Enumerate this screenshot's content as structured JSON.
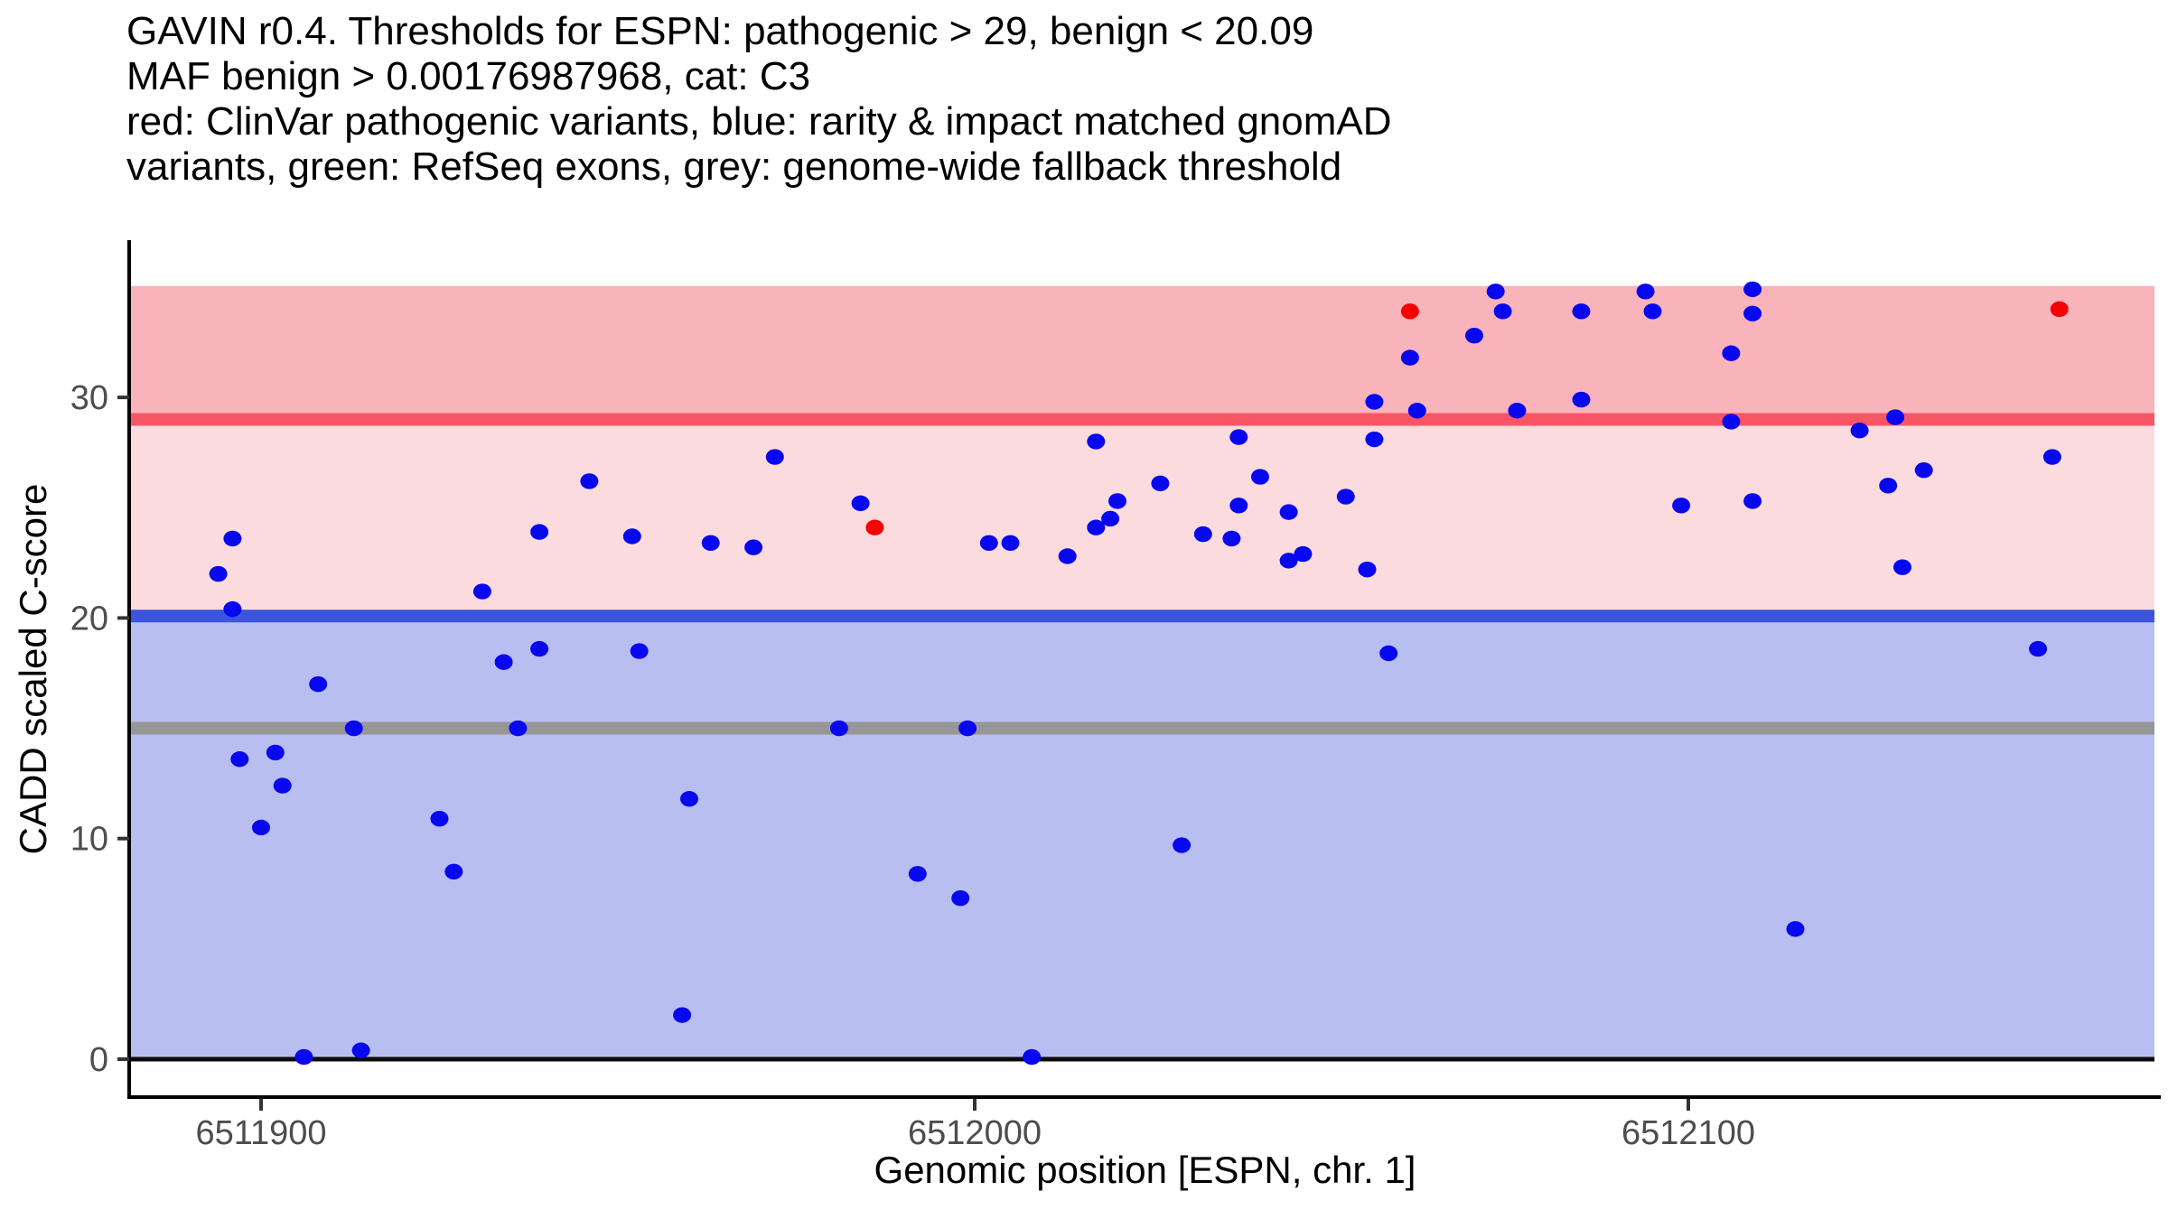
{
  "title": {
    "lines": [
      "GAVIN r0.4. Thresholds for ESPN: pathogenic > 29, benign < 20.09",
      "MAF benign > 0.00176987968, cat: C3",
      "red: ClinVar pathogenic variants, blue: rarity & impact matched gnomAD",
      "variants, green: RefSeq exons, grey: genome-wide fallback threshold"
    ]
  },
  "chart_data": {
    "type": "scatter",
    "title": "GAVIN r0.4. Thresholds for ESPN: pathogenic > 29, benign < 20.09 MAF benign > 0.00176987968, cat: C3",
    "xlabel": "Genomic position [ESPN, chr. 1]",
    "ylabel": "CADD scaled C-score",
    "x_ticks": [
      6511900,
      6512000,
      6512100
    ],
    "y_ticks": [
      0,
      10,
      20,
      30
    ],
    "xlim": [
      6511881,
      6512166
    ],
    "ylim": [
      -1.7,
      37.1
    ],
    "grid": false,
    "legend_position": "none",
    "thresholds": {
      "pathogenic": 29,
      "benign": 20.09,
      "genome_wide_fallback": 15,
      "band_top": 35.05,
      "zero_line": 0
    },
    "colors": {
      "pathogenic_band": "#F9B3BB",
      "vus_band": "#FCDBDF",
      "benign_band": "#B9BEF1",
      "pathogenic_line": "#F85565",
      "benign_line": "#3B55DF",
      "fallback_line": "#969696",
      "zero_line": "#0b0b0b",
      "axis": "#000000",
      "tick_label": "#4d4d4d",
      "blue_point": "#0707F0",
      "red_point": "#F70000"
    },
    "series": [
      {
        "name": "ClinVar pathogenic variants",
        "color": "#F70000",
        "points": [
          [
            6511986,
            24.1
          ],
          [
            6512061,
            33.9
          ],
          [
            6512152,
            34.0
          ]
        ]
      },
      {
        "name": "rarity & impact matched gnomAD variants",
        "color": "#0707F0",
        "points": [
          [
            6511894,
            22.0
          ],
          [
            6511896,
            23.6
          ],
          [
            6511896,
            20.4
          ],
          [
            6511897,
            13.6
          ],
          [
            6511900,
            10.5
          ],
          [
            6511902,
            13.9
          ],
          [
            6511903,
            12.4
          ],
          [
            6511906,
            0.1
          ],
          [
            6511908,
            17.0
          ],
          [
            6511913,
            15.0
          ],
          [
            6511914,
            0.4
          ],
          [
            6511925,
            10.9
          ],
          [
            6511927,
            8.5
          ],
          [
            6511931,
            21.2
          ],
          [
            6511934,
            18.0
          ],
          [
            6511936,
            15.0
          ],
          [
            6511939,
            18.6
          ],
          [
            6511939,
            23.9
          ],
          [
            6511946,
            26.2
          ],
          [
            6511952,
            23.7
          ],
          [
            6511953,
            18.5
          ],
          [
            6511959,
            2.0
          ],
          [
            6511960,
            11.8
          ],
          [
            6511963,
            23.4
          ],
          [
            6511969,
            23.2
          ],
          [
            6511972,
            27.3
          ],
          [
            6511981,
            15.0
          ],
          [
            6511984,
            25.2
          ],
          [
            6511992,
            8.4
          ],
          [
            6511998,
            7.3
          ],
          [
            6511999,
            15.0
          ],
          [
            6512002,
            23.4
          ],
          [
            6512005,
            23.4
          ],
          [
            6512008,
            0.1
          ],
          [
            6512013,
            22.8
          ],
          [
            6512017,
            28.0
          ],
          [
            6512017,
            24.1
          ],
          [
            6512019,
            24.5
          ],
          [
            6512020,
            25.3
          ],
          [
            6512026,
            26.1
          ],
          [
            6512029,
            9.7
          ],
          [
            6512032,
            23.8
          ],
          [
            6512036,
            23.6
          ],
          [
            6512037,
            28.2
          ],
          [
            6512037,
            25.1
          ],
          [
            6512040,
            26.4
          ],
          [
            6512044,
            24.8
          ],
          [
            6512044,
            22.6
          ],
          [
            6512046,
            22.9
          ],
          [
            6512052,
            25.5
          ],
          [
            6512055,
            22.2
          ],
          [
            6512056,
            29.8
          ],
          [
            6512056,
            28.1
          ],
          [
            6512058,
            18.4
          ],
          [
            6512061,
            31.8
          ],
          [
            6512062,
            29.4
          ],
          [
            6512070,
            32.8
          ],
          [
            6512073,
            34.8
          ],
          [
            6512074,
            33.9
          ],
          [
            6512076,
            29.4
          ],
          [
            6512085,
            33.9
          ],
          [
            6512085,
            29.9
          ],
          [
            6512094,
            34.8
          ],
          [
            6512095,
            33.9
          ],
          [
            6512099,
            25.1
          ],
          [
            6512106,
            32.0
          ],
          [
            6512106,
            28.9
          ],
          [
            6512109,
            34.9
          ],
          [
            6512109,
            33.8
          ],
          [
            6512109,
            25.3
          ],
          [
            6512115,
            5.9
          ],
          [
            6512124,
            28.5
          ],
          [
            6512128,
            26.0
          ],
          [
            6512129,
            29.1
          ],
          [
            6512130,
            22.3
          ],
          [
            6512133,
            26.7
          ],
          [
            6512149,
            18.6
          ],
          [
            6512151,
            27.3
          ]
        ]
      }
    ]
  }
}
